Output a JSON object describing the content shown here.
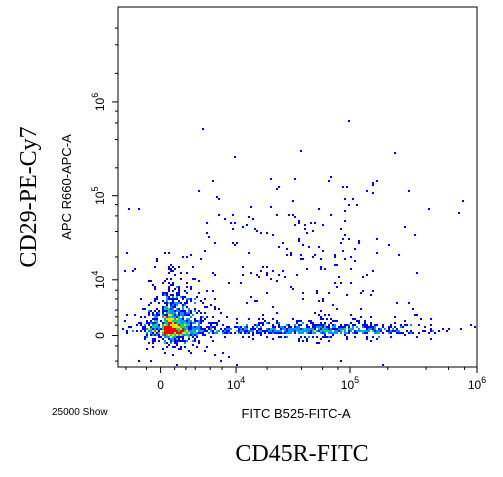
{
  "outer_ylabel": "CD29-PE-Cy7",
  "outer_xlabel": "CD45R-FITC",
  "event_count": "25000 Show",
  "chart_data": {
    "type": "scatter",
    "subtype": "flow-cytometry density dot plot",
    "xlabel": "FITC B525-FITC-A",
    "ylabel": "APC R660-APC-A",
    "x_scale": "biexponential",
    "y_scale": "biexponential",
    "xlim": [
      -4000,
      1000000
    ],
    "ylim": [
      -4000,
      10000000
    ],
    "x_ticks": [
      {
        "value": 0,
        "base": "0",
        "exp": ""
      },
      {
        "value": 10000,
        "base": "10",
        "exp": "4"
      },
      {
        "value": 100000,
        "base": "10",
        "exp": "5"
      },
      {
        "value": 1000000,
        "base": "10",
        "exp": "6"
      }
    ],
    "y_ticks": [
      {
        "value": 0,
        "base": "0",
        "exp": ""
      },
      {
        "value": 10000,
        "base": "10",
        "exp": "4"
      },
      {
        "value": 100000,
        "base": "10",
        "exp": "5"
      },
      {
        "value": 1000000,
        "base": "10",
        "exp": "6"
      }
    ],
    "grid": false,
    "legend": "none",
    "total_events": 25000,
    "populations": [
      {
        "x_center": 1000,
        "y_center": 900,
        "x_spread": 0.35,
        "y_spread": 0.5,
        "share": 0.6,
        "density": "high"
      },
      {
        "x_center": 50000,
        "y_center": 500,
        "x_spread": 0.45,
        "y_spread": 0.25,
        "share": 0.3,
        "density": "medium"
      },
      {
        "x_center": 40000,
        "y_center": 20000,
        "x_spread": 0.55,
        "y_spread": 0.6,
        "share": 0.1,
        "density": "sparse"
      }
    ],
    "colors": {
      "sparse": "#0000ff",
      "low": "#0096ff",
      "medium": "#00dc64",
      "high": "#ffdc00",
      "peak": "#ff0000",
      "axis": "#000000"
    }
  }
}
